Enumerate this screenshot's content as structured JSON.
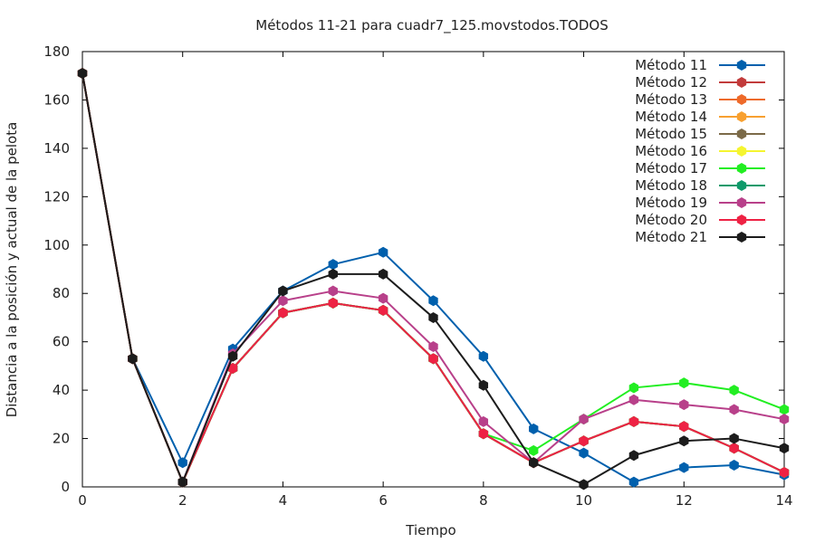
{
  "chart_data": {
    "type": "line",
    "title": "Métodos 11-21 para cuadr7_125.movstodos.TODOS",
    "xlabel": "Tiempo",
    "ylabel": "Distancia a la posición y actual de la pelota",
    "xlim": [
      0,
      14
    ],
    "ylim": [
      0,
      180
    ],
    "xticks": [
      0,
      2,
      4,
      6,
      8,
      10,
      12,
      14
    ],
    "yticks": [
      0,
      20,
      40,
      60,
      80,
      100,
      120,
      140,
      160,
      180
    ],
    "legend_position": "top-right",
    "grid": false,
    "x": [
      0,
      1,
      2,
      3,
      4,
      5,
      6,
      7,
      8,
      9,
      10,
      11,
      12,
      13,
      14
    ],
    "series": [
      {
        "name": "Método 11",
        "color": "#0060ad",
        "values": [
          171,
          53,
          10,
          57,
          81,
          92,
          97,
          77,
          54,
          24,
          14,
          2,
          8,
          9,
          5
        ]
      },
      {
        "name": "Método 12",
        "color": "#c23b3b",
        "values": [
          171,
          53,
          2,
          49,
          72,
          76,
          73,
          53,
          22,
          10,
          19,
          27,
          25,
          16,
          6
        ]
      },
      {
        "name": "Método 13",
        "color": "#ee6a2a",
        "values": [
          171,
          53,
          2,
          49,
          72,
          76,
          73,
          53,
          22,
          10,
          19,
          27,
          25,
          16,
          6
        ]
      },
      {
        "name": "Método 14",
        "color": "#f8a030",
        "values": [
          171,
          53,
          2,
          49,
          72,
          76,
          73,
          53,
          22,
          10,
          19,
          27,
          25,
          16,
          6
        ]
      },
      {
        "name": "Método 15",
        "color": "#7b6a48",
        "values": [
          171,
          53,
          2,
          49,
          72,
          76,
          73,
          53,
          22,
          10,
          19,
          27,
          25,
          16,
          6
        ]
      },
      {
        "name": "Método 16",
        "color": "#f5f530",
        "values": [
          171,
          53,
          2,
          49,
          72,
          76,
          73,
          53,
          22,
          10,
          19,
          27,
          25,
          16,
          6
        ]
      },
      {
        "name": "Método 17",
        "color": "#22ee22",
        "values": [
          171,
          53,
          2,
          49,
          72,
          76,
          73,
          53,
          22,
          15,
          28,
          41,
          43,
          40,
          32
        ]
      },
      {
        "name": "Método 18",
        "color": "#0e9a6a",
        "values": [
          171,
          53,
          2,
          49,
          72,
          76,
          73,
          53,
          22,
          10,
          19,
          27,
          25,
          16,
          6
        ]
      },
      {
        "name": "Método 19",
        "color": "#b8408a",
        "values": [
          171,
          53,
          2,
          55,
          77,
          81,
          78,
          58,
          27,
          10,
          28,
          36,
          34,
          32,
          28
        ]
      },
      {
        "name": "Método 20",
        "color": "#ee2244",
        "values": [
          171,
          53,
          2,
          49,
          72,
          76,
          73,
          53,
          22,
          10,
          19,
          27,
          25,
          16,
          6
        ]
      },
      {
        "name": "Método 21",
        "color": "#1c1c1c",
        "values": [
          171,
          53,
          2,
          54,
          81,
          88,
          88,
          70,
          42,
          10,
          1,
          13,
          19,
          20,
          16
        ]
      }
    ]
  }
}
